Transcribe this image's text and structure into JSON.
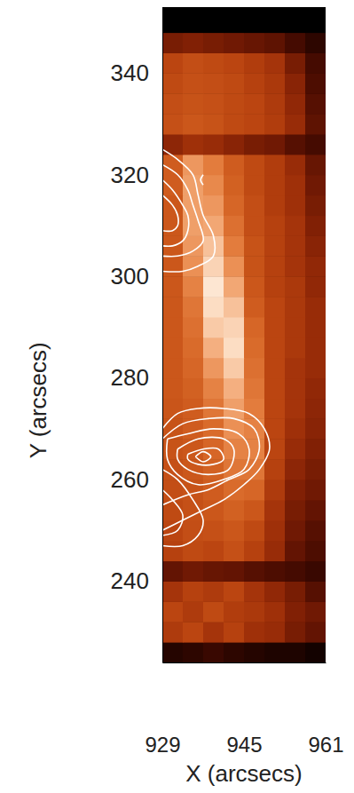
{
  "chart_data": {
    "type": "heatmap",
    "x_label": "X (arcsecs)",
    "y_label": "Y (arcsecs)",
    "xlim": [
      929,
      961
    ],
    "ylim": [
      224,
      353
    ],
    "xticks": [
      929,
      945,
      961
    ],
    "yticks": [
      240,
      260,
      280,
      300,
      320,
      340
    ],
    "color_range": [
      0,
      100
    ],
    "x": [
      931,
      935,
      939,
      943,
      947,
      951,
      955,
      959
    ],
    "y": [
      226,
      230,
      234,
      238,
      242,
      246,
      250,
      254,
      258,
      262,
      266,
      270,
      274,
      278,
      282,
      286,
      290,
      294,
      298,
      302,
      306,
      310,
      314,
      318,
      322,
      326,
      330,
      334,
      338,
      342,
      346,
      350
    ],
    "values": [
      [
        10,
        12,
        15,
        12,
        10,
        8,
        8,
        5
      ],
      [
        45,
        50,
        42,
        48,
        40,
        38,
        30,
        25
      ],
      [
        50,
        45,
        52,
        46,
        44,
        40,
        32,
        28
      ],
      [
        42,
        48,
        45,
        50,
        42,
        36,
        30,
        22
      ],
      [
        25,
        28,
        26,
        25,
        22,
        20,
        18,
        15
      ],
      [
        48,
        52,
        50,
        55,
        48,
        38,
        25,
        20
      ],
      [
        50,
        54,
        55,
        58,
        52,
        40,
        28,
        22
      ],
      [
        52,
        55,
        58,
        62,
        58,
        42,
        30,
        25
      ],
      [
        54,
        56,
        60,
        66,
        64,
        45,
        32,
        28
      ],
      [
        55,
        58,
        62,
        70,
        70,
        48,
        35,
        30
      ],
      [
        56,
        58,
        64,
        74,
        74,
        50,
        38,
        32
      ],
      [
        56,
        60,
        66,
        78,
        74,
        50,
        40,
        34
      ],
      [
        57,
        60,
        70,
        82,
        72,
        50,
        42,
        35
      ],
      [
        58,
        62,
        74,
        86,
        70,
        50,
        42,
        36
      ],
      [
        58,
        64,
        80,
        92,
        68,
        50,
        42,
        38
      ],
      [
        58,
        66,
        86,
        96,
        66,
        50,
        44,
        38
      ],
      [
        58,
        68,
        92,
        94,
        64,
        50,
        44,
        38
      ],
      [
        58,
        70,
        96,
        90,
        60,
        50,
        44,
        38
      ],
      [
        58,
        74,
        98,
        84,
        58,
        48,
        44,
        36
      ],
      [
        58,
        78,
        94,
        78,
        56,
        48,
        42,
        36
      ],
      [
        58,
        80,
        90,
        72,
        56,
        48,
        42,
        34
      ],
      [
        58,
        82,
        84,
        68,
        54,
        48,
        42,
        32
      ],
      [
        58,
        82,
        80,
        64,
        54,
        46,
        40,
        30
      ],
      [
        60,
        82,
        76,
        62,
        52,
        46,
        40,
        28
      ],
      [
        60,
        80,
        72,
        60,
        52,
        46,
        38,
        26
      ],
      [
        35,
        40,
        38,
        34,
        30,
        28,
        22,
        18
      ],
      [
        55,
        58,
        56,
        52,
        50,
        46,
        38,
        24
      ],
      [
        54,
        56,
        55,
        52,
        50,
        45,
        36,
        22
      ],
      [
        52,
        55,
        54,
        52,
        48,
        44,
        34,
        20
      ],
      [
        50,
        54,
        52,
        50,
        46,
        42,
        30,
        18
      ],
      [
        30,
        32,
        30,
        28,
        26,
        24,
        18,
        12
      ],
      [
        0,
        0,
        0,
        0,
        0,
        0,
        0,
        0
      ]
    ],
    "contours": [
      {
        "color": "#ffffff",
        "x": [
          929,
          932,
          935,
          936,
          937,
          939,
          939,
          936,
          933,
          929
        ],
        "y": [
          325,
          323,
          320,
          316,
          312,
          308,
          304,
          302,
          301,
          301
        ]
      },
      {
        "color": "#ffffff",
        "x": [
          929,
          932,
          934,
          935,
          936,
          937,
          935,
          932,
          929
        ],
        "y": [
          322,
          320,
          317,
          314,
          311,
          307,
          305,
          304,
          304
        ]
      },
      {
        "color": "#ffffff",
        "x": [
          929,
          931,
          933,
          934,
          934,
          933,
          931,
          929
        ],
        "y": [
          319,
          317,
          314,
          312,
          309,
          307,
          306,
          306
        ]
      },
      {
        "color": "#ffffff",
        "x": [
          929,
          931,
          932,
          932,
          931,
          929
        ],
        "y": [
          316,
          314,
          312,
          310,
          309,
          309
        ]
      },
      {
        "color": "#ffffff",
        "x": [
          937,
          936.5,
          937
        ],
        "y": [
          320,
          319,
          318
        ]
      },
      {
        "color": "#ffffff",
        "x": [
          929,
          932,
          936,
          941,
          946,
          949,
          950,
          948,
          945,
          941,
          937,
          933,
          929
        ],
        "y": [
          270,
          273,
          274,
          274,
          273,
          270,
          266,
          262,
          259,
          256,
          254,
          252,
          250
        ]
      },
      {
        "color": "#ffffff",
        "x": [
          929,
          933,
          938,
          943,
          947,
          948,
          946,
          942,
          938,
          934,
          929
        ],
        "y": [
          268,
          271,
          272,
          272,
          270,
          266,
          262,
          260,
          258,
          257,
          255
        ]
      },
      {
        "color": "#ffffff",
        "x": [
          930,
          934,
          939,
          944,
          946,
          945,
          941,
          936,
          932,
          930,
          930
        ],
        "y": [
          268,
          269,
          270,
          269,
          266,
          262,
          260,
          259,
          261,
          264,
          268
        ]
      },
      {
        "color": "#ffffff",
        "x": [
          932,
          936,
          941,
          943,
          942,
          938,
          934,
          932,
          932
        ],
        "y": [
          266,
          268,
          268,
          266,
          262,
          261,
          262,
          264,
          266
        ]
      },
      {
        "color": "#ffffff",
        "x": [
          934,
          937,
          940,
          941,
          939,
          936,
          934,
          934
        ],
        "y": [
          265,
          266,
          266,
          264,
          263,
          263,
          264,
          265
        ]
      },
      {
        "color": "#ffffff",
        "x": [
          935.5,
          937,
          938.5,
          937,
          935.5
        ],
        "y": [
          264.5,
          265.5,
          264.5,
          263.5,
          264.5
        ]
      },
      {
        "color": "#ffffff",
        "x": [
          929,
          932,
          935,
          937,
          936,
          933,
          929
        ],
        "y": [
          262,
          260,
          256,
          252,
          249,
          247,
          247
        ]
      },
      {
        "color": "#ffffff",
        "x": [
          929,
          931,
          933,
          932,
          929
        ],
        "y": [
          258,
          256,
          253,
          250,
          249
        ]
      }
    ]
  }
}
